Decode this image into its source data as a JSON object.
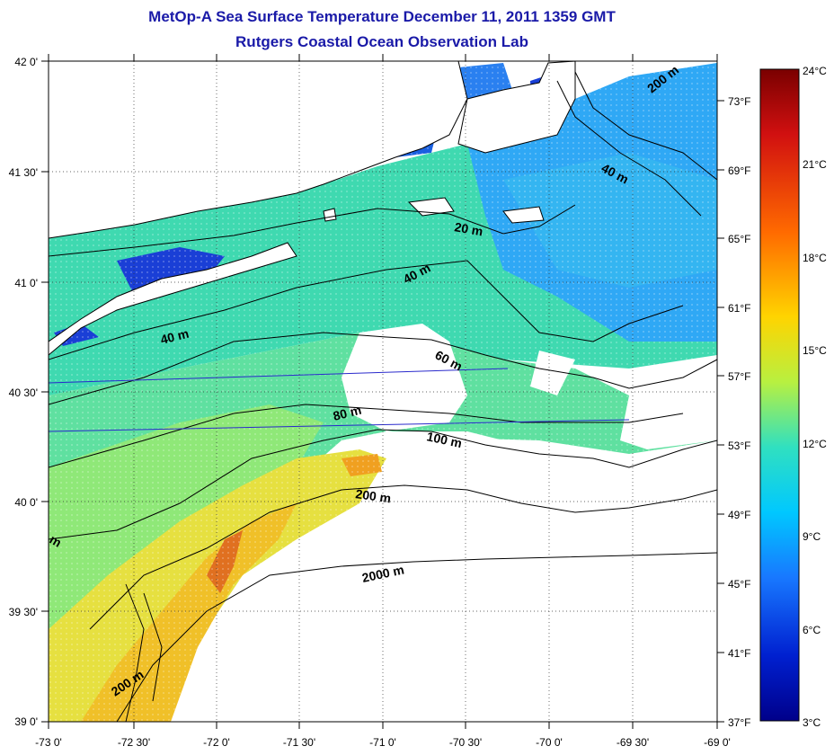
{
  "title": {
    "line1": "MetOp-A Sea Surface Temperature December 11, 2011 1359 GMT",
    "line2": "Rutgers Coastal Ocean Observation Lab"
  },
  "map": {
    "lon_labels": [
      "-73 0'",
      "-72 30'",
      "-72 0'",
      "-71 30'",
      "-71 0'",
      "-70 30'",
      "-70 0'",
      "-69 30'",
      "-69 0'"
    ],
    "lat_labels": [
      "42 0'",
      "41 30'",
      "41 0'",
      "40 30'",
      "40 0'",
      "39 30'",
      "39 0'"
    ],
    "fahrenheit_labels": [
      "73°F",
      "69°F",
      "65°F",
      "61°F",
      "57°F",
      "53°F",
      "49°F",
      "45°F",
      "41°F",
      "37°F"
    ],
    "contour_labels": {
      "c200_ne": "200 m",
      "c40_ne": "40 m",
      "c20": "20 m",
      "c40_mid": "40 m",
      "c40_west": "40 m",
      "c60": "60 m",
      "c80": "80 m",
      "c100": "100 m",
      "c200_mid": "200 m",
      "c2000": "2000 m",
      "c200_sw": "200 m",
      "c_edge": "m"
    },
    "colors": {
      "land": "#ffffff",
      "cold": "#1a3fd6",
      "cool": "#2fa0ff",
      "mid": "#3fd9b0",
      "warm": "#c8e650",
      "hot": "#f2c020",
      "very_hot": "#d8241a",
      "axis_blue": "#2a2acc"
    }
  },
  "colorbar": {
    "celsius_labels": [
      "24°C",
      "21°C",
      "18°C",
      "15°C",
      "12°C",
      "9°C",
      "6°C",
      "3°C"
    ],
    "gradient": [
      "#7a0000",
      "#d11010",
      "#ff6a00",
      "#ffd400",
      "#b8f040",
      "#30e0c0",
      "#00c8ff",
      "#1878ff",
      "#0020d0",
      "#00008a"
    ]
  }
}
